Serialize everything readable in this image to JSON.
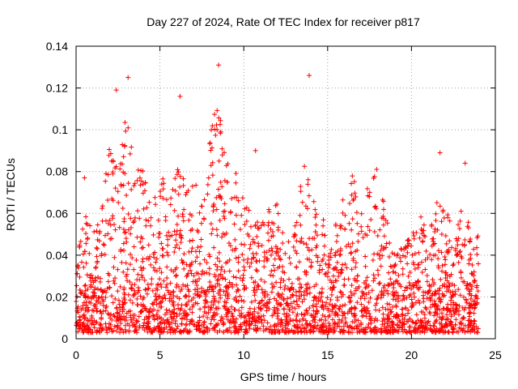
{
  "chart_data": {
    "type": "scatter",
    "title": "Day 227 of 2024, Rate Of TEC Index for receiver p817",
    "xlabel": "GPS time / hours",
    "ylabel": "ROTI / TECUs",
    "xlim": [
      0,
      25
    ],
    "ylim": [
      0,
      0.14
    ],
    "xticks": [
      0,
      5,
      10,
      15,
      20,
      25
    ],
    "yticks": [
      0,
      0.02,
      0.04,
      0.06,
      0.08,
      0.1,
      0.12,
      0.14
    ],
    "xtick_labels": [
      "0",
      "5",
      "10",
      "15",
      "20",
      "25"
    ],
    "ytick_labels": [
      "0",
      "0.02",
      "0.04",
      "0.06",
      "0.08",
      "0.1",
      "0.12",
      "0.14"
    ],
    "grid": true,
    "marker": "+",
    "color": "#ff0000",
    "x_coverage": [
      0,
      24
    ],
    "notable_points": [
      {
        "x": 8.5,
        "y": 0.131
      },
      {
        "x": 3.1,
        "y": 0.125
      },
      {
        "x": 13.9,
        "y": 0.126
      },
      {
        "x": 2.4,
        "y": 0.119
      },
      {
        "x": 6.2,
        "y": 0.116
      },
      {
        "x": 10.7,
        "y": 0.09
      },
      {
        "x": 21.7,
        "y": 0.089
      },
      {
        "x": 23.2,
        "y": 0.084
      },
      {
        "x": 0.5,
        "y": 0.077
      }
    ],
    "envelope": [
      {
        "x": 0.0,
        "y": 0.04
      },
      {
        "x": 0.5,
        "y": 0.062
      },
      {
        "x": 1.0,
        "y": 0.05
      },
      {
        "x": 1.5,
        "y": 0.06
      },
      {
        "x": 2.0,
        "y": 0.1
      },
      {
        "x": 2.5,
        "y": 0.09
      },
      {
        "x": 3.0,
        "y": 0.11
      },
      {
        "x": 3.5,
        "y": 0.08
      },
      {
        "x": 4.0,
        "y": 0.085
      },
      {
        "x": 4.5,
        "y": 0.06
      },
      {
        "x": 5.0,
        "y": 0.085
      },
      {
        "x": 5.5,
        "y": 0.065
      },
      {
        "x": 6.0,
        "y": 0.09
      },
      {
        "x": 6.5,
        "y": 0.075
      },
      {
        "x": 7.0,
        "y": 0.075
      },
      {
        "x": 7.5,
        "y": 0.07
      },
      {
        "x": 8.0,
        "y": 0.1
      },
      {
        "x": 8.5,
        "y": 0.115
      },
      {
        "x": 9.0,
        "y": 0.085
      },
      {
        "x": 9.5,
        "y": 0.08
      },
      {
        "x": 10.0,
        "y": 0.07
      },
      {
        "x": 10.5,
        "y": 0.06
      },
      {
        "x": 11.0,
        "y": 0.06
      },
      {
        "x": 11.5,
        "y": 0.065
      },
      {
        "x": 12.0,
        "y": 0.066
      },
      {
        "x": 12.5,
        "y": 0.045
      },
      {
        "x": 13.0,
        "y": 0.05
      },
      {
        "x": 13.5,
        "y": 0.086
      },
      {
        "x": 14.0,
        "y": 0.075
      },
      {
        "x": 14.5,
        "y": 0.065
      },
      {
        "x": 15.0,
        "y": 0.05
      },
      {
        "x": 15.5,
        "y": 0.06
      },
      {
        "x": 16.0,
        "y": 0.07
      },
      {
        "x": 16.5,
        "y": 0.08
      },
      {
        "x": 17.0,
        "y": 0.065
      },
      {
        "x": 17.5,
        "y": 0.075
      },
      {
        "x": 18.0,
        "y": 0.088
      },
      {
        "x": 18.5,
        "y": 0.06
      },
      {
        "x": 19.0,
        "y": 0.045
      },
      {
        "x": 19.5,
        "y": 0.045
      },
      {
        "x": 20.0,
        "y": 0.05
      },
      {
        "x": 20.5,
        "y": 0.06
      },
      {
        "x": 21.0,
        "y": 0.05
      },
      {
        "x": 21.5,
        "y": 0.07
      },
      {
        "x": 22.0,
        "y": 0.06
      },
      {
        "x": 22.5,
        "y": 0.058
      },
      {
        "x": 23.0,
        "y": 0.065
      },
      {
        "x": 23.5,
        "y": 0.055
      },
      {
        "x": 24.0,
        "y": 0.05
      }
    ]
  }
}
